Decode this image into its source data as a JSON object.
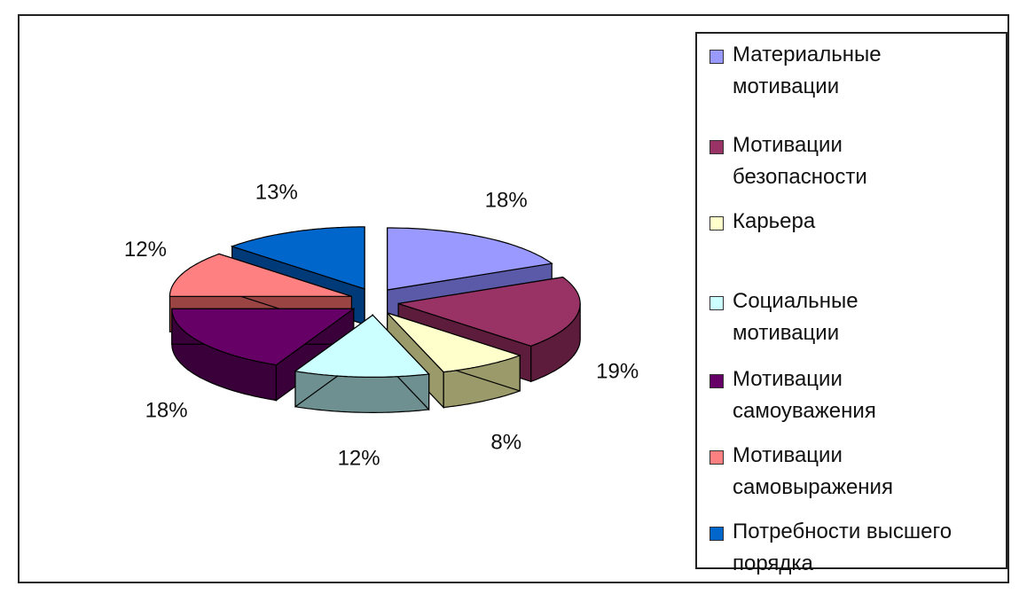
{
  "chart_data": {
    "type": "pie",
    "style": "3d-exploded",
    "legend_position": "right",
    "slices": [
      {
        "label": "Материальные мотивации",
        "legend_lines": [
          "Материальные",
          "мотивации"
        ],
        "value": 18,
        "value_label": "18%",
        "color": "#9999ff",
        "side_color": "#5a5aa8"
      },
      {
        "label": "Мотивации безопасности",
        "legend_lines": [
          "Мотивации",
          "безопасности"
        ],
        "value": 19,
        "value_label": "19%",
        "color": "#993366",
        "side_color": "#5e1c3c"
      },
      {
        "label": "Карьера",
        "legend_lines": [
          "Карьера"
        ],
        "value": 8,
        "value_label": "8%",
        "color": "#ffffcc",
        "side_color": "#9a9a6a"
      },
      {
        "label": "Социальные мотивации",
        "legend_lines": [
          "Социальные",
          "мотивации"
        ],
        "value": 12,
        "value_label": "12%",
        "color": "#ccffff",
        "side_color": "#6e9090"
      },
      {
        "label": "Мотивации самоуважения",
        "legend_lines": [
          "Мотивации",
          "самоуважения"
        ],
        "value": 18,
        "value_label": "18%",
        "color": "#660066",
        "side_color": "#3a003a"
      },
      {
        "label": "Мотивации самовыражения",
        "legend_lines": [
          "Мотивации",
          "самовыражения"
        ],
        "value": 12,
        "value_label": "12%",
        "color": "#ff8080",
        "side_color": "#9a4444"
      },
      {
        "label": "Потребности высшего порядка",
        "legend_lines": [
          "Потребности высшего",
          "порядка"
        ],
        "value": 13,
        "value_label": "13%",
        "color": "#0066cc",
        "side_color": "#003a78"
      }
    ]
  }
}
